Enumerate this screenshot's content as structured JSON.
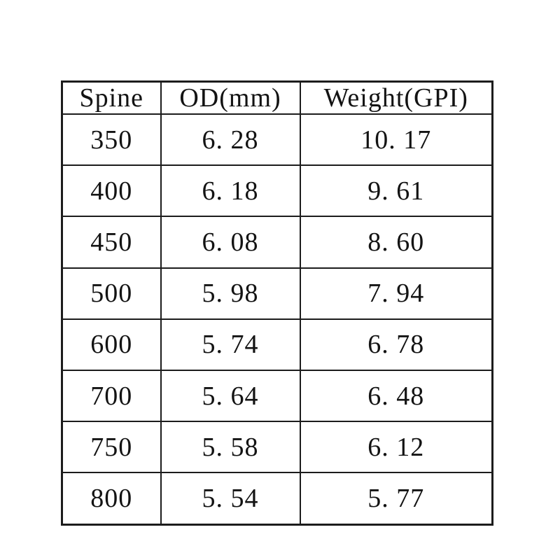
{
  "page": {
    "background_color": "#ffffff",
    "text_color": "#131313",
    "border_color": "#1c1c1c"
  },
  "table": {
    "headers": [
      "Spine",
      "OD(mm)",
      "Weight(GPI)"
    ],
    "rows": [
      [
        "350",
        "6. 28",
        "10. 17"
      ],
      [
        "400",
        "6. 18",
        "9. 61"
      ],
      [
        "450",
        "6. 08",
        "8. 60"
      ],
      [
        "500",
        "5. 98",
        "7. 94"
      ],
      [
        "600",
        "5. 74",
        "6. 78"
      ],
      [
        "700",
        "5. 64",
        "6. 48"
      ],
      [
        "750",
        "5. 58",
        "6. 12"
      ],
      [
        "800",
        "5. 54",
        "5. 77"
      ]
    ]
  },
  "chart_data": {
    "type": "table",
    "title": "",
    "columns": [
      "Spine",
      "OD(mm)",
      "Weight(GPI)"
    ],
    "rows": [
      [
        350,
        6.28,
        10.17
      ],
      [
        400,
        6.18,
        9.61
      ],
      [
        450,
        6.08,
        8.6
      ],
      [
        500,
        5.98,
        7.94
      ],
      [
        600,
        5.74,
        6.78
      ],
      [
        700,
        5.64,
        6.48
      ],
      [
        750,
        5.58,
        6.12
      ],
      [
        800,
        5.54,
        5.77
      ]
    ]
  }
}
